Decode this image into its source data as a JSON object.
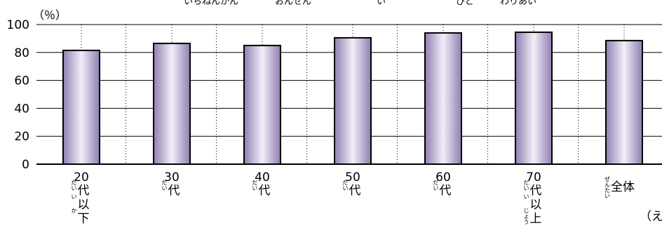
{
  "title_ruby": [
    "いちねんかん",
    "おんせん",
    "い",
    "ひと",
    "わりあい"
  ],
  "chart_data": {
    "type": "bar",
    "ylabel": "（％）",
    "ylim": [
      0,
      100
    ],
    "yticks": [
      0,
      20,
      40,
      60,
      80,
      100
    ],
    "grid": true,
    "categories": [
      {
        "number": "20",
        "kanji": [
          "代",
          "以",
          "下"
        ],
        "ruby": [
          "だい",
          "い",
          "か"
        ]
      },
      {
        "number": "30",
        "kanji": [
          "代"
        ],
        "ruby": [
          "だい"
        ]
      },
      {
        "number": "40",
        "kanji": [
          "代"
        ],
        "ruby": [
          "だい"
        ]
      },
      {
        "number": "50",
        "kanji": [
          "代"
        ],
        "ruby": [
          "だい"
        ]
      },
      {
        "number": "60",
        "kanji": [
          "代"
        ],
        "ruby": [
          "だい"
        ]
      },
      {
        "number": "70",
        "kanji": [
          "代",
          "以",
          "上"
        ],
        "ruby": [
          "だい",
          "い",
          "じょう"
        ]
      },
      {
        "number": "",
        "kanji": [
          "全体"
        ],
        "ruby": [
          "ぜんたい"
        ]
      }
    ],
    "values": [
      81.5,
      86.5,
      85,
      90.5,
      94,
      94.5,
      88.5
    ],
    "bar_gradient": [
      "#8f7fb0",
      "#f2eef8",
      "#8f7fb0"
    ],
    "cut_text": "（え"
  }
}
